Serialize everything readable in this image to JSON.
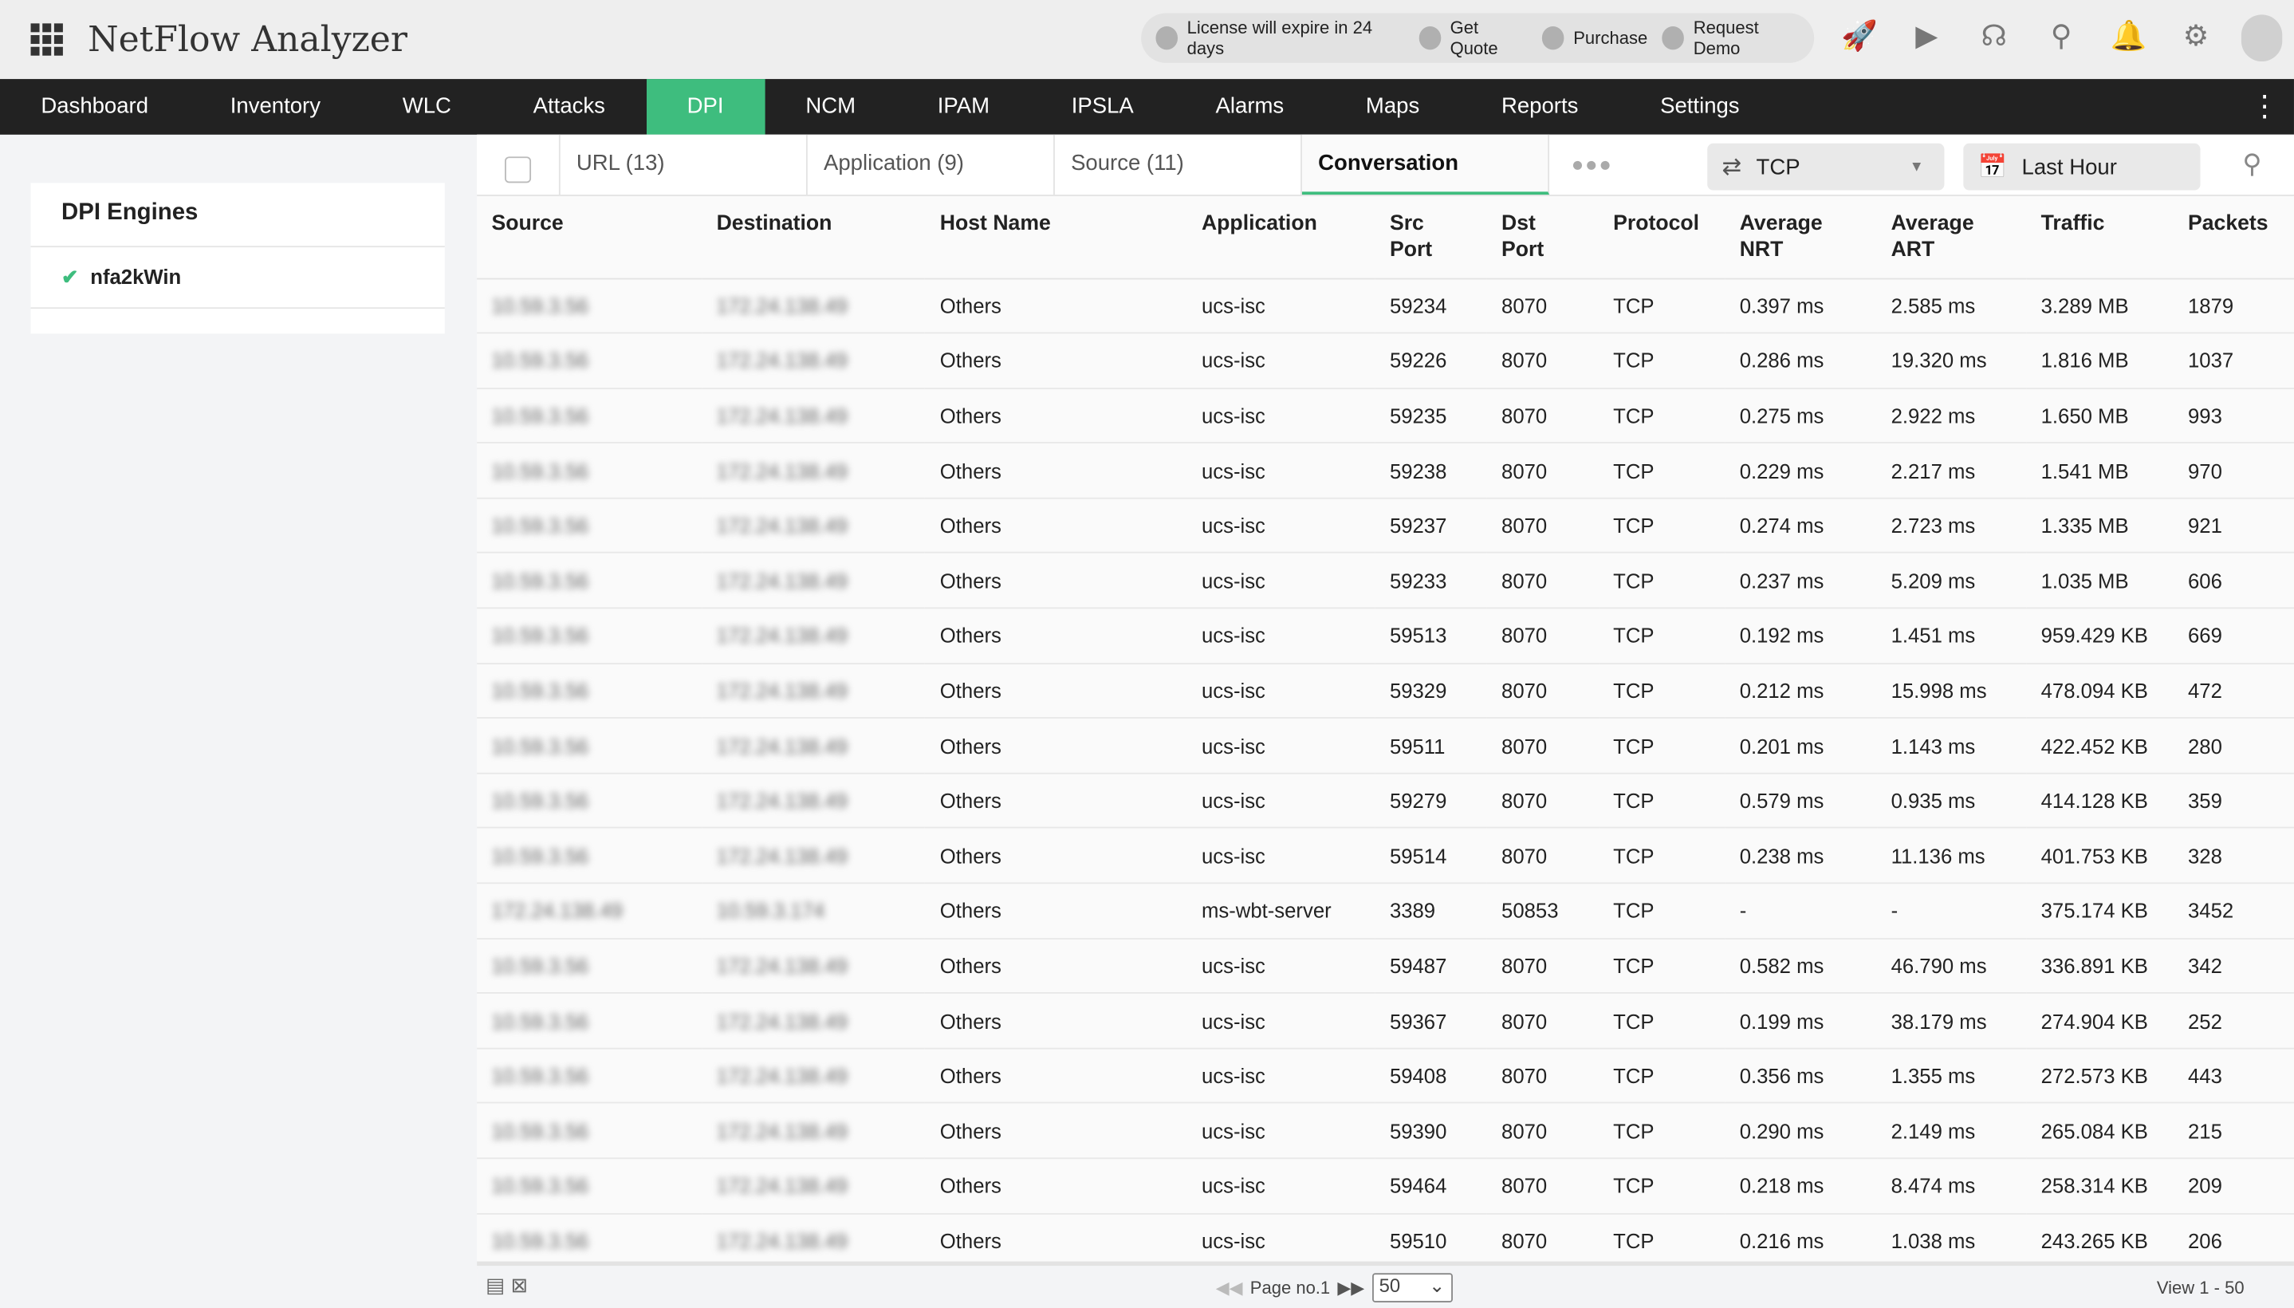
{
  "header": {
    "title": "NetFlow Analyzer",
    "license": "License will expire in 24 days",
    "get_quote": "Get Quote",
    "purchase": "Purchase",
    "request_demo": "Request Demo"
  },
  "nav": [
    "Dashboard",
    "Inventory",
    "WLC",
    "Attacks",
    "DPI",
    "NCM",
    "IPAM",
    "IPSLA",
    "Alarms",
    "Maps",
    "Reports",
    "Settings"
  ],
  "nav_active": "DPI",
  "sidebar": {
    "title": "DPI Engines",
    "engine": "nfa2kWin"
  },
  "tabs": [
    "URL (13)",
    "Application (9)",
    "Source (11)",
    "Conversation"
  ],
  "protocol_select": "TCP",
  "time_select": "Last Hour",
  "columns": [
    "Source",
    "Destination",
    "Host Name",
    "Application",
    "Src Port",
    "Dst Port",
    "Protocol",
    "Average NRT",
    "Average ART",
    "Traffic",
    "Packets"
  ],
  "rows": [
    [
      "10.59.3.56",
      "172.24.138.49",
      "Others",
      "ucs-isc",
      "59234",
      "8070",
      "TCP",
      "0.397 ms",
      "2.585 ms",
      "3.289 MB",
      "1879"
    ],
    [
      "10.59.3.56",
      "172.24.138.49",
      "Others",
      "ucs-isc",
      "59226",
      "8070",
      "TCP",
      "0.286 ms",
      "19.320 ms",
      "1.816 MB",
      "1037"
    ],
    [
      "10.59.3.56",
      "172.24.138.49",
      "Others",
      "ucs-isc",
      "59235",
      "8070",
      "TCP",
      "0.275 ms",
      "2.922 ms",
      "1.650 MB",
      "993"
    ],
    [
      "10.59.3.56",
      "172.24.138.49",
      "Others",
      "ucs-isc",
      "59238",
      "8070",
      "TCP",
      "0.229 ms",
      "2.217 ms",
      "1.541 MB",
      "970"
    ],
    [
      "10.59.3.56",
      "172.24.138.49",
      "Others",
      "ucs-isc",
      "59237",
      "8070",
      "TCP",
      "0.274 ms",
      "2.723 ms",
      "1.335 MB",
      "921"
    ],
    [
      "10.59.3.56",
      "172.24.138.49",
      "Others",
      "ucs-isc",
      "59233",
      "8070",
      "TCP",
      "0.237 ms",
      "5.209 ms",
      "1.035 MB",
      "606"
    ],
    [
      "10.59.3.56",
      "172.24.138.49",
      "Others",
      "ucs-isc",
      "59513",
      "8070",
      "TCP",
      "0.192 ms",
      "1.451 ms",
      "959.429 KB",
      "669"
    ],
    [
      "10.59.3.56",
      "172.24.138.49",
      "Others",
      "ucs-isc",
      "59329",
      "8070",
      "TCP",
      "0.212 ms",
      "15.998 ms",
      "478.094 KB",
      "472"
    ],
    [
      "10.59.3.56",
      "172.24.138.49",
      "Others",
      "ucs-isc",
      "59511",
      "8070",
      "TCP",
      "0.201 ms",
      "1.143 ms",
      "422.452 KB",
      "280"
    ],
    [
      "10.59.3.56",
      "172.24.138.49",
      "Others",
      "ucs-isc",
      "59279",
      "8070",
      "TCP",
      "0.579 ms",
      "0.935 ms",
      "414.128 KB",
      "359"
    ],
    [
      "10.59.3.56",
      "172.24.138.49",
      "Others",
      "ucs-isc",
      "59514",
      "8070",
      "TCP",
      "0.238 ms",
      "11.136 ms",
      "401.753 KB",
      "328"
    ],
    [
      "172.24.138.49",
      "10.59.3.174",
      "Others",
      "ms-wbt-server",
      "3389",
      "50853",
      "TCP",
      "-",
      "-",
      "375.174 KB",
      "3452"
    ],
    [
      "10.59.3.56",
      "172.24.138.49",
      "Others",
      "ucs-isc",
      "59487",
      "8070",
      "TCP",
      "0.582 ms",
      "46.790 ms",
      "336.891 KB",
      "342"
    ],
    [
      "10.59.3.56",
      "172.24.138.49",
      "Others",
      "ucs-isc",
      "59367",
      "8070",
      "TCP",
      "0.199 ms",
      "38.179 ms",
      "274.904 KB",
      "252"
    ],
    [
      "10.59.3.56",
      "172.24.138.49",
      "Others",
      "ucs-isc",
      "59408",
      "8070",
      "TCP",
      "0.356 ms",
      "1.355 ms",
      "272.573 KB",
      "443"
    ],
    [
      "10.59.3.56",
      "172.24.138.49",
      "Others",
      "ucs-isc",
      "59390",
      "8070",
      "TCP",
      "0.290 ms",
      "2.149 ms",
      "265.084 KB",
      "215"
    ],
    [
      "10.59.3.56",
      "172.24.138.49",
      "Others",
      "ucs-isc",
      "59464",
      "8070",
      "TCP",
      "0.218 ms",
      "8.474 ms",
      "258.314 KB",
      "209"
    ],
    [
      "10.59.3.56",
      "172.24.138.49",
      "Others",
      "ucs-isc",
      "59510",
      "8070",
      "TCP",
      "0.216 ms",
      "1.038 ms",
      "243.265 KB",
      "206"
    ]
  ],
  "footer": {
    "page_label": "Page no.1",
    "page_size": "50",
    "view_count": "View 1 - 50"
  },
  "colors": {
    "accent": "#3ebd7e",
    "nav_bg": "#222222"
  }
}
